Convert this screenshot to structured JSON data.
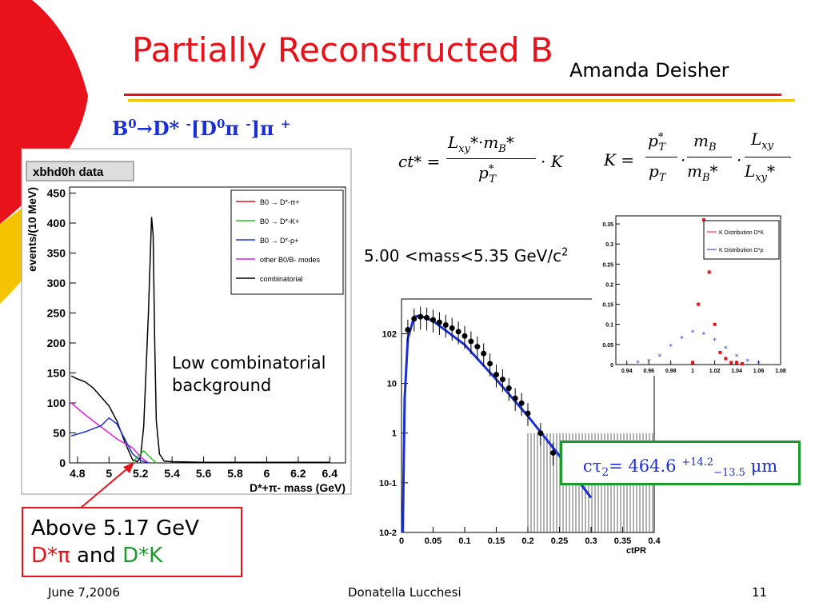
{
  "slide": {
    "title": "Partially Reconstructed B",
    "author": "Amanda Deisher",
    "decay": {
      "b": "B",
      "b_sup": "0",
      "arrow": "→",
      "dstar": "D*",
      "dstar_sup": "-",
      "d0": "[D",
      "d0_sup": "0",
      "pi1": "π",
      "pi1_sup": "-",
      "close": "]",
      "pi2": "π",
      "pi2_sup": "+"
    },
    "eq_ct": {
      "lhs": "ct* =",
      "num": "L",
      "num_sub": "xy",
      "num_rest": "*·m",
      "num_sub2": "B",
      "num_star": "*",
      "den": "p",
      "den_sup": "*",
      "den_sub": "T",
      "tail": "· K"
    },
    "eq_k": {
      "lhs": "K =",
      "f1_num": "p",
      "f1_num_sup": "*",
      "f1_num_sub": "T",
      "f1_den": "p",
      "f1_den_sub": "T",
      "f2_num": "m",
      "f2_num_sub": "B",
      "f2_den": "m",
      "f2_den_sub": "B",
      "f2_den_star": "*",
      "f3_num": "L",
      "f3_num_sub": "xy",
      "f3_den": "L",
      "f3_den_sub": "xy",
      "f3_den_star": "*",
      "dot": "·"
    },
    "mass_window": {
      "text": "5.00 <mass<5.35 GeV/c",
      "sup": "2"
    },
    "low_comb": [
      "Low combinatorial",
      "background"
    ],
    "callout": {
      "line1": "Above 5.17 GeV",
      "dpi": "D*π",
      "and": " and ",
      "dk": "D*K"
    },
    "result": {
      "ctau": "cτ",
      "sub": "2",
      "eq": "= 464.6 ",
      "plus": "+14.2",
      "minus": "−13.5",
      "unit": " μm"
    },
    "footer": {
      "date": "June 7,2006",
      "presenter": "Donatella Lucchesi",
      "page": "11"
    },
    "colors": {
      "title": "#e8121a",
      "blue": "#1a2fd6",
      "green": "#1a9a2a",
      "yellow": "#f5c400"
    }
  },
  "chart_data": [
    {
      "type": "line",
      "title": "xbhd0h data",
      "xlabel": "D*+π- mass (GeV)",
      "ylabel": "events/(10 MeV)",
      "xlim": [
        4.75,
        6.5
      ],
      "ylim": [
        0,
        460
      ],
      "x_ticks": [
        "4.8",
        "5",
        "5.2",
        "5.4",
        "5.6",
        "5.8",
        "6",
        "6.2",
        "6.4"
      ],
      "y_ticks": [
        "0",
        "50",
        "100",
        "150",
        "200",
        "250",
        "300",
        "350",
        "400",
        "450"
      ],
      "legend": {
        "placement": "top-right",
        "entries": [
          {
            "label": "B0 → D*-π+",
            "color": "#e8121a"
          },
          {
            "label": "B0 → D*-K+",
            "color": "#22c022"
          },
          {
            "label": "B0 → D*-ρ+",
            "color": "#2233cc"
          },
          {
            "label": "other B0/B- modes",
            "color": "#e020e0"
          },
          {
            "label": "combinatorial",
            "color": "#000000"
          }
        ]
      },
      "series": [
        {
          "name": "data",
          "color": "#000000",
          "x": [
            4.76,
            4.8,
            4.85,
            4.9,
            4.95,
            5.0,
            5.05,
            5.1,
            5.15,
            5.18,
            5.2,
            5.22,
            5.25,
            5.27,
            5.28,
            5.29,
            5.3,
            5.32,
            5.35,
            5.4,
            5.6,
            6.0,
            6.4
          ],
          "y": [
            145,
            140,
            135,
            125,
            110,
            95,
            70,
            35,
            5,
            2,
            10,
            60,
            250,
            410,
            380,
            200,
            70,
            15,
            3,
            2,
            1,
            1,
            1
          ]
        },
        {
          "name": "other B0/B- modes",
          "color": "#e020e0",
          "x": [
            4.76,
            4.85,
            4.95,
            5.05,
            5.15,
            5.2,
            5.25
          ],
          "y": [
            100,
            80,
            60,
            40,
            25,
            10,
            0
          ]
        },
        {
          "name": "B0 → D*-ρ+",
          "color": "#2233cc",
          "x": [
            4.76,
            4.85,
            4.95,
            5.0,
            5.05,
            5.1,
            5.15,
            5.2,
            5.25
          ],
          "y": [
            45,
            52,
            62,
            75,
            65,
            40,
            15,
            4,
            0
          ]
        },
        {
          "name": "B0 → D*-K+",
          "color": "#22c022",
          "x": [
            5.15,
            5.2,
            5.22,
            5.25,
            5.3
          ],
          "y": [
            2,
            15,
            20,
            12,
            0
          ]
        }
      ]
    },
    {
      "type": "scatter",
      "xlabel": "ctPR",
      "ylabel": "",
      "xlim": [
        0,
        0.4
      ],
      "ylim": [
        0.01,
        500
      ],
      "log_y": true,
      "x_ticks": [
        "0",
        "0.05",
        "0.1",
        "0.15",
        "0.2",
        "0.25",
        "0.3",
        "0.35",
        "0.4"
      ],
      "y_ticks": [
        "10-2",
        "10-1",
        "1",
        "10",
        "102"
      ],
      "series": [
        {
          "name": "data",
          "color": "#000000",
          "x": [
            0.01,
            0.02,
            0.03,
            0.04,
            0.05,
            0.06,
            0.07,
            0.08,
            0.09,
            0.1,
            0.11,
            0.12,
            0.13,
            0.14,
            0.15,
            0.16,
            0.17,
            0.18,
            0.19,
            0.2,
            0.22,
            0.24
          ],
          "y": [
            120,
            200,
            220,
            210,
            190,
            170,
            150,
            130,
            110,
            90,
            70,
            55,
            40,
            25,
            15,
            12,
            8,
            5,
            4,
            2.5,
            1,
            0.4
          ]
        },
        {
          "name": "fit",
          "color": "#1a2fd6",
          "x": [
            0.002,
            0.005,
            0.01,
            0.02,
            0.03,
            0.05,
            0.1,
            0.15,
            0.2,
            0.25,
            0.3
          ],
          "y": [
            0.01,
            5,
            80,
            220,
            230,
            180,
            60,
            12,
            2.2,
            0.35,
            0.05
          ]
        }
      ]
    },
    {
      "type": "scatter",
      "xlim": [
        0.93,
        1.08
      ],
      "ylim": [
        0,
        0.37
      ],
      "x_ticks": [
        "0.94",
        "0.96",
        "0.98",
        "1",
        "1.02",
        "1.04",
        "1.06",
        "1.08"
      ],
      "y_ticks": [
        "0",
        "0.05",
        "0.1",
        "0.15",
        "0.2",
        "0.25",
        "0.3",
        "0.35"
      ],
      "legend": {
        "placement": "top-right",
        "entries": [
          {
            "label": "K Distribution D*K",
            "color": "#e8121a"
          },
          {
            "label": "K Distribution D*ρ",
            "color": "#2233cc"
          }
        ]
      },
      "series": [
        {
          "name": "K Distribution D*K",
          "color": "#e8121a",
          "x": [
            1.0,
            1.005,
            1.01,
            1.015,
            1.02,
            1.025,
            1.03,
            1.035,
            1.04,
            1.045
          ],
          "y": [
            0.005,
            0.15,
            0.36,
            0.23,
            0.1,
            0.03,
            0.015,
            0.005,
            0.005,
            0.002
          ]
        },
        {
          "name": "K Distribution D*ρ",
          "color": "#2233cc",
          "x": [
            0.95,
            0.96,
            0.97,
            0.98,
            0.99,
            1.0,
            1.01,
            1.02,
            1.03,
            1.04,
            1.05,
            1.06
          ],
          "y": [
            0.004,
            0.008,
            0.02,
            0.045,
            0.065,
            0.08,
            0.075,
            0.06,
            0.04,
            0.02,
            0.008,
            0.003
          ]
        }
      ]
    }
  ]
}
